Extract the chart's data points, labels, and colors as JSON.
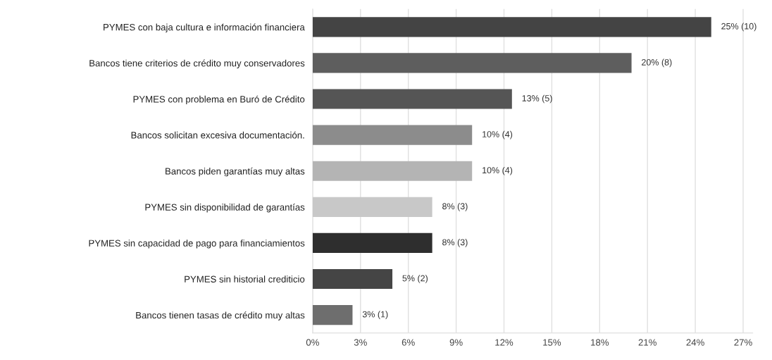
{
  "chart_data": {
    "type": "bar",
    "orientation": "horizontal",
    "categories": [
      "PYMES con baja cultura e información financiera",
      "Bancos tiene criterios de crédito muy conservadores",
      "PYMES con problema en Buró de Crédito",
      "Bancos solicitan excesiva documentación.",
      "Bancos piden garantías muy altas",
      "PYMES sin disponibilidad de garantías",
      "PYMES sin capacidad de pago para financiamientos",
      "PYMES sin historial crediticio",
      "Bancos tienen tasas de crédito muy altas"
    ],
    "values": [
      25,
      20,
      12.5,
      10,
      10,
      7.5,
      7.5,
      5,
      2.5
    ],
    "colors": [
      "#444444",
      "#5e5e5e",
      "#555555",
      "#8c8c8c",
      "#b4b4b4",
      "#c8c8c8",
      "#2e2e2e",
      "#454545",
      "#6e6e6e"
    ],
    "value_labels": [
      "25% (10)",
      "20% (8)",
      "13% (5)",
      "10% (4)",
      "10% (4)",
      "8% (3)",
      "8% (3)",
      "5% (2)",
      "3% (1)"
    ],
    "xlim": [
      0,
      27.6
    ],
    "xticks": [
      {
        "value": 0,
        "label": "0%"
      },
      {
        "value": 3,
        "label": "3%"
      },
      {
        "value": 6,
        "label": "6%"
      },
      {
        "value": 9,
        "label": "9%"
      },
      {
        "value": 12,
        "label": "12%"
      },
      {
        "value": 15,
        "label": "15%"
      },
      {
        "value": 18,
        "label": "18%"
      },
      {
        "value": 21,
        "label": "21%"
      },
      {
        "value": 24,
        "label": "24%"
      },
      {
        "value": 27,
        "label": "27%"
      }
    ],
    "grid": "x",
    "legend": false
  }
}
